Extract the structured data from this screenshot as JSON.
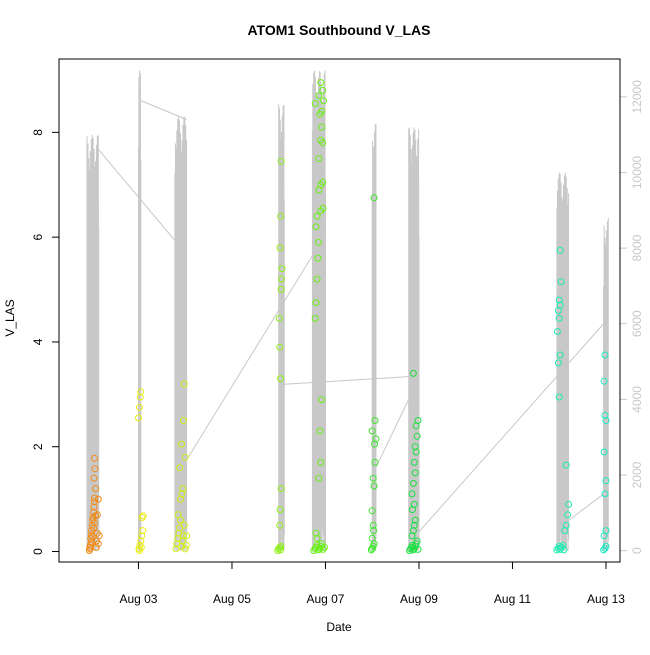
{
  "chart_data": {
    "type": "scatter",
    "title": "ATOM1 Southbound V_LAS",
    "xlabel": "Date",
    "ylabel": "V_LAS",
    "x_unit": "days since Aug 01 00:00",
    "xlim": [
      1.3,
      13.3
    ],
    "ylim": [
      -0.2,
      9.4
    ],
    "y2lim": [
      -300,
      13000
    ],
    "x_ticks": [
      3,
      5,
      7,
      9,
      11,
      13
    ],
    "x_tick_labels": [
      "Aug 03",
      "Aug 05",
      "Aug 07",
      "Aug 09",
      "Aug 11",
      "Aug 13"
    ],
    "y_ticks": [
      0,
      2,
      4,
      6,
      8
    ],
    "y2_ticks": [
      0,
      2000,
      4000,
      6000,
      8000,
      10000,
      12000
    ],
    "grid": false,
    "colors": {
      "line": "#c8c8c8",
      "axis": "#000000",
      "right_axis": "#c8c8c8"
    },
    "series": [
      {
        "color": "#f28a14",
        "points": [
          [
            1.95,
            0.02
          ],
          [
            1.96,
            0.08
          ],
          [
            1.97,
            0.12
          ],
          [
            1.98,
            0.25
          ],
          [
            1.99,
            0.32
          ],
          [
            2.0,
            0.4
          ],
          [
            2.01,
            0.5
          ],
          [
            2.02,
            0.6
          ],
          [
            2.03,
            0.65
          ],
          [
            2.04,
            0.75
          ],
          [
            2.05,
            0.85
          ],
          [
            2.06,
            0.95
          ],
          [
            1.97,
            0.05
          ],
          [
            2.0,
            0.18
          ],
          [
            2.02,
            0.28
          ],
          [
            2.04,
            0.45
          ],
          [
            2.06,
            0.55
          ],
          [
            2.08,
            0.68
          ],
          [
            2.1,
            0.08
          ],
          [
            2.1,
            0.2
          ],
          [
            2.12,
            0.35
          ],
          [
            2.12,
            0.7
          ],
          [
            2.14,
            1.0
          ],
          [
            2.14,
            0.15
          ],
          [
            2.06,
            1.02
          ],
          [
            2.08,
            1.2
          ],
          [
            2.05,
            1.4
          ],
          [
            2.07,
            1.58
          ],
          [
            2.06,
            1.78
          ],
          [
            2.16,
            0.3
          ]
        ]
      },
      {
        "color": "#e8ec14",
        "points": [
          [
            3.0,
            2.55
          ],
          [
            3.02,
            2.75
          ],
          [
            3.04,
            2.95
          ],
          [
            3.05,
            3.05
          ],
          [
            3.01,
            0.05
          ],
          [
            3.03,
            0.12
          ],
          [
            3.05,
            0.2
          ],
          [
            3.07,
            0.3
          ],
          [
            3.09,
            0.4
          ],
          [
            3.08,
            0.65
          ],
          [
            3.1,
            0.68
          ],
          [
            3.02,
            0.02
          ],
          [
            3.06,
            0.08
          ]
        ]
      },
      {
        "color": "#d2f014",
        "points": [
          [
            3.8,
            0.05
          ],
          [
            3.82,
            0.15
          ],
          [
            3.84,
            0.25
          ],
          [
            3.86,
            0.35
          ],
          [
            3.88,
            0.45
          ],
          [
            3.9,
            0.6
          ],
          [
            3.92,
            0.1
          ],
          [
            3.94,
            0.2
          ],
          [
            3.96,
            0.3
          ],
          [
            3.98,
            0.5
          ],
          [
            4.0,
            0.05
          ],
          [
            4.02,
            0.12
          ],
          [
            3.85,
            0.7
          ],
          [
            3.9,
            1.0
          ],
          [
            3.95,
            1.2
          ],
          [
            3.88,
            1.6
          ],
          [
            3.92,
            2.05
          ],
          [
            3.96,
            2.5
          ],
          [
            4.0,
            1.8
          ],
          [
            3.98,
            3.2
          ],
          [
            3.93,
            1.1
          ],
          [
            4.03,
            0.3
          ]
        ]
      },
      {
        "color": "#8cf014",
        "points": [
          [
            5.98,
            0.02
          ],
          [
            6.0,
            0.05
          ],
          [
            6.02,
            0.08
          ],
          [
            6.04,
            0.03
          ],
          [
            6.05,
            0.1
          ],
          [
            6.02,
            0.5
          ],
          [
            6.03,
            0.8
          ],
          [
            6.05,
            1.2
          ],
          [
            6.04,
            3.3
          ],
          [
            6.02,
            3.9
          ],
          [
            6.01,
            4.45
          ],
          [
            6.05,
            5.0
          ],
          [
            6.06,
            5.2
          ],
          [
            6.07,
            5.4
          ],
          [
            6.03,
            5.8
          ],
          [
            6.04,
            6.4
          ],
          [
            6.05,
            7.45
          ]
        ]
      },
      {
        "color": "#6af014",
        "points": [
          [
            6.75,
            0.02
          ],
          [
            6.78,
            0.05
          ],
          [
            6.8,
            0.08
          ],
          [
            6.82,
            0.12
          ],
          [
            6.85,
            0.03
          ],
          [
            6.88,
            0.06
          ],
          [
            6.9,
            0.1
          ],
          [
            6.92,
            0.15
          ],
          [
            6.95,
            0.04
          ],
          [
            6.98,
            0.08
          ],
          [
            6.8,
            0.35
          ],
          [
            6.82,
            0.25
          ],
          [
            6.86,
            1.4
          ],
          [
            6.9,
            1.7
          ],
          [
            6.88,
            2.3
          ],
          [
            6.92,
            2.9
          ],
          [
            6.78,
            4.45
          ],
          [
            6.8,
            4.75
          ],
          [
            6.82,
            5.2
          ],
          [
            6.84,
            5.6
          ],
          [
            6.85,
            5.9
          ],
          [
            6.8,
            6.2
          ],
          [
            6.82,
            6.4
          ],
          [
            6.9,
            6.5
          ],
          [
            6.95,
            6.55
          ],
          [
            6.86,
            6.9
          ],
          [
            6.9,
            7.0
          ],
          [
            6.94,
            7.05
          ],
          [
            6.86,
            7.5
          ],
          [
            6.9,
            7.85
          ],
          [
            6.94,
            7.8
          ],
          [
            6.92,
            8.1
          ],
          [
            6.88,
            8.35
          ],
          [
            6.92,
            8.4
          ],
          [
            6.96,
            8.6
          ],
          [
            6.78,
            8.55
          ],
          [
            6.86,
            8.7
          ],
          [
            6.94,
            8.8
          ],
          [
            6.9,
            8.95
          ]
        ]
      },
      {
        "color": "#3ce82a",
        "points": [
          [
            7.98,
            0.03
          ],
          [
            8.0,
            0.06
          ],
          [
            8.02,
            0.1
          ],
          [
            8.04,
            0.15
          ],
          [
            8.0,
            0.25
          ],
          [
            8.03,
            0.4
          ],
          [
            8.02,
            0.5
          ],
          [
            8.0,
            0.78
          ],
          [
            8.04,
            1.25
          ],
          [
            8.02,
            1.4
          ],
          [
            8.06,
            1.7
          ],
          [
            8.05,
            2.05
          ],
          [
            8.08,
            2.15
          ],
          [
            8.0,
            2.3
          ],
          [
            8.06,
            2.5
          ],
          [
            8.04,
            6.75
          ]
        ]
      },
      {
        "color": "#1ae040",
        "points": [
          [
            8.8,
            0.02
          ],
          [
            8.82,
            0.05
          ],
          [
            8.84,
            0.08
          ],
          [
            8.86,
            0.12
          ],
          [
            8.88,
            0.03
          ],
          [
            8.9,
            0.06
          ],
          [
            8.92,
            0.1
          ],
          [
            8.94,
            0.15
          ],
          [
            8.96,
            0.2
          ],
          [
            8.98,
            0.04
          ],
          [
            8.85,
            0.3
          ],
          [
            8.88,
            0.4
          ],
          [
            8.9,
            0.5
          ],
          [
            8.92,
            0.6
          ],
          [
            8.86,
            0.8
          ],
          [
            8.9,
            0.9
          ],
          [
            8.85,
            1.1
          ],
          [
            8.88,
            1.3
          ],
          [
            8.92,
            1.5
          ],
          [
            8.9,
            1.7
          ],
          [
            8.94,
            1.9
          ],
          [
            8.92,
            2.0
          ],
          [
            8.96,
            2.2
          ],
          [
            8.94,
            2.4
          ],
          [
            8.98,
            2.5
          ],
          [
            8.88,
            3.4
          ]
        ]
      },
      {
        "color": "#1aecb0",
        "points": [
          [
            11.95,
            0.03
          ],
          [
            11.98,
            0.06
          ],
          [
            12.0,
            0.1
          ],
          [
            12.02,
            0.04
          ],
          [
            12.05,
            0.08
          ],
          [
            12.08,
            0.12
          ],
          [
            12.1,
            0.03
          ],
          [
            12.12,
            0.4
          ],
          [
            12.15,
            0.5
          ],
          [
            12.18,
            0.7
          ],
          [
            12.2,
            0.9
          ],
          [
            12.15,
            1.65
          ],
          [
            12.0,
            2.95
          ],
          [
            11.98,
            3.6
          ],
          [
            12.02,
            3.75
          ],
          [
            11.96,
            4.2
          ],
          [
            12.0,
            4.45
          ],
          [
            11.98,
            4.6
          ],
          [
            12.02,
            4.7
          ],
          [
            12.0,
            4.8
          ],
          [
            12.04,
            5.15
          ],
          [
            12.02,
            5.75
          ]
        ]
      },
      {
        "color": "#1ae8c0",
        "points": [
          [
            12.95,
            0.03
          ],
          [
            12.98,
            0.06
          ],
          [
            13.0,
            0.1
          ],
          [
            12.96,
            0.3
          ],
          [
            13.0,
            0.4
          ],
          [
            12.98,
            1.1
          ],
          [
            13.0,
            1.35
          ],
          [
            12.96,
            1.9
          ],
          [
            13.0,
            2.5
          ],
          [
            12.98,
            2.6
          ],
          [
            12.96,
            3.25
          ],
          [
            12.98,
            3.75
          ]
        ]
      }
    ],
    "line_series": {
      "axis": "right",
      "bursts": [
        [
          1.9,
          2.15,
          11000,
          25
        ],
        [
          3.0,
          3.05,
          12700,
          6
        ],
        [
          3.78,
          4.03,
          11500,
          25
        ],
        [
          6.0,
          6.12,
          11800,
          14
        ],
        [
          6.72,
          7.0,
          12700,
          30
        ],
        [
          8.0,
          8.08,
          11300,
          10
        ],
        [
          8.78,
          9.0,
          11200,
          25
        ],
        [
          11.95,
          12.2,
          10000,
          25
        ],
        [
          12.95,
          13.05,
          8800,
          10
        ]
      ],
      "connectors": [
        [
          2.15,
          10600,
          3.78,
          8200
        ],
        [
          3.05,
          11900,
          4.03,
          11400
        ],
        [
          4.03,
          2400,
          6.72,
          7800
        ],
        [
          6.12,
          4400,
          8.78,
          4600
        ],
        [
          8.08,
          2200,
          8.78,
          4000
        ],
        [
          9.0,
          500,
          12.95,
          6000
        ],
        [
          12.2,
          800,
          12.95,
          1500
        ]
      ]
    }
  }
}
